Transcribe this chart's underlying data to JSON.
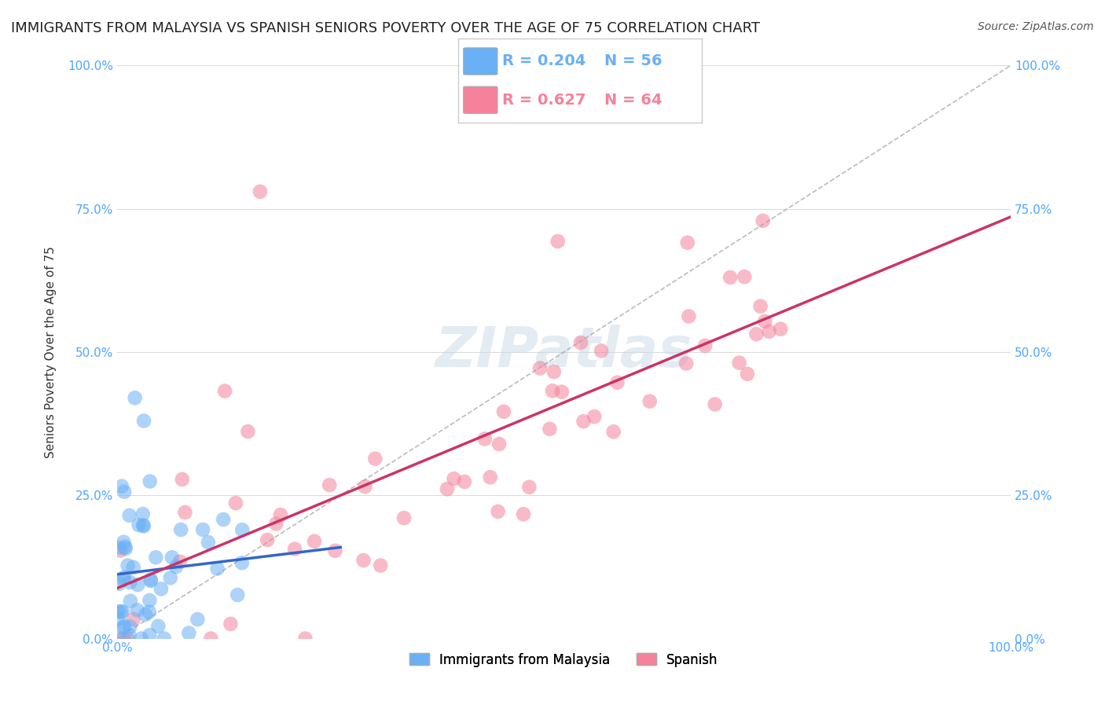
{
  "title": "IMMIGRANTS FROM MALAYSIA VS SPANISH SENIORS POVERTY OVER THE AGE OF 75 CORRELATION CHART",
  "source": "Source: ZipAtlas.com",
  "xlabel_color": "#4da6ff",
  "ylabel": "Seniors Poverty Over the Age of 75",
  "xlim": [
    0,
    1
  ],
  "ylim": [
    0,
    1
  ],
  "xtick_labels": [
    "0.0%",
    "100.0%"
  ],
  "ytick_labels": [
    "0.0%",
    "25.0%",
    "50.0%",
    "75.0%",
    "100.0%"
  ],
  "ytick_positions": [
    0.0,
    0.25,
    0.5,
    0.75,
    1.0
  ],
  "legend_R1": "R = 0.204",
  "legend_N1": "N = 56",
  "legend_R2": "R = 0.627",
  "legend_N2": "N = 64",
  "legend_label1": "Immigrants from Malaysia",
  "legend_label2": "Spanish",
  "blue_color": "#6ab0f5",
  "pink_color": "#f5829a",
  "R1": 0.204,
  "N1": 56,
  "R2": 0.627,
  "N2": 64,
  "watermark": "ZIPatlas",
  "background_color": "#ffffff",
  "grid_color": "#cccccc",
  "title_fontsize": 13,
  "axis_label_fontsize": 11,
  "tick_fontsize": 11,
  "legend_fontsize": 13
}
